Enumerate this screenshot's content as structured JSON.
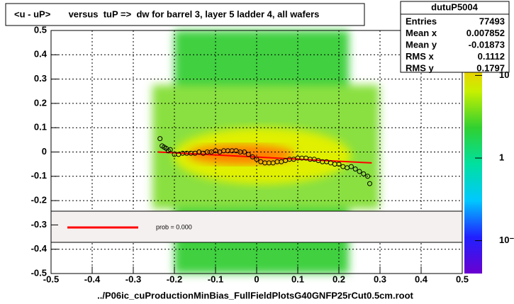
{
  "chart_data": {
    "type": "scatter",
    "title": "<u - uP>       versus  tuP =>  dw for barrel 3, layer 5 ladder 4, all wafers",
    "x_label": "../P06ic_cuProductionMinBias_FullFieldPlotsG40GNFP25rCut0.5cm.root",
    "xlim": [
      -0.5,
      0.5
    ],
    "ylim": [
      -0.5,
      0.5
    ],
    "xticks": [
      -0.5,
      -0.4,
      -0.3,
      -0.2,
      -0.1,
      0,
      0.1,
      0.2,
      0.3,
      0.4,
      0.5
    ],
    "yticks": [
      -0.5,
      -0.4,
      -0.3,
      -0.2,
      -0.1,
      0,
      0.1,
      0.2,
      0.3,
      0.4,
      0.5
    ],
    "grid": true,
    "profile": {
      "color": "#000000",
      "x": [
        -0.235,
        -0.23,
        -0.225,
        -0.22,
        -0.215,
        -0.21,
        -0.2,
        -0.19,
        -0.18,
        -0.17,
        -0.16,
        -0.15,
        -0.14,
        -0.13,
        -0.12,
        -0.11,
        -0.1,
        -0.09,
        -0.08,
        -0.07,
        -0.06,
        -0.05,
        -0.04,
        -0.03,
        -0.02,
        -0.01,
        0,
        0.01,
        0.02,
        0.03,
        0.04,
        0.05,
        0.06,
        0.07,
        0.08,
        0.09,
        0.1,
        0.11,
        0.12,
        0.13,
        0.14,
        0.15,
        0.16,
        0.17,
        0.18,
        0.19,
        0.2,
        0.21,
        0.22,
        0.23,
        0.24,
        0.25,
        0.26,
        0.27,
        0.275
      ],
      "values": [
        0.055,
        0.025,
        0.02,
        0.015,
        0.005,
        0.01,
        -0.01,
        -0.01,
        -0.005,
        -0.005,
        -0.005,
        -0.005,
        0,
        -0.005,
        0,
        0,
        0.005,
        0,
        0.005,
        0.005,
        0.005,
        0.005,
        0,
        0,
        -0.01,
        -0.02,
        -0.03,
        -0.04,
        -0.045,
        -0.045,
        -0.045,
        -0.04,
        -0.04,
        -0.035,
        -0.03,
        -0.03,
        -0.025,
        -0.025,
        -0.025,
        -0.03,
        -0.03,
        -0.035,
        -0.04,
        -0.04,
        -0.045,
        -0.05,
        -0.05,
        -0.06,
        -0.065,
        -0.06,
        -0.07,
        -0.08,
        -0.09,
        -0.1,
        -0.13
      ]
    },
    "fit": {
      "color": "#ff0000",
      "x": [
        -0.24,
        0.28
      ],
      "values": [
        0,
        -0.045
      ]
    },
    "legend": {
      "text": "prob = 0.000"
    },
    "stats": {
      "title": "dutuP5004",
      "rows": [
        {
          "label": "Entries",
          "value": 77493
        },
        {
          "label": "Mean x",
          "value": 0.007852
        },
        {
          "label": "Mean y",
          "value": -0.01873
        },
        {
          "label": "RMS x",
          "value": 0.1112
        },
        {
          "label": "RMS y",
          "value": 0.1797
        }
      ]
    },
    "colorbar": {
      "log": true,
      "zlim": [
        0.04,
        35
      ],
      "ticks": [
        {
          "value": 10,
          "label": "10"
        },
        {
          "value": 1,
          "label": "1"
        },
        {
          "value": 0.1,
          "label": "10⁻¹"
        }
      ]
    }
  }
}
